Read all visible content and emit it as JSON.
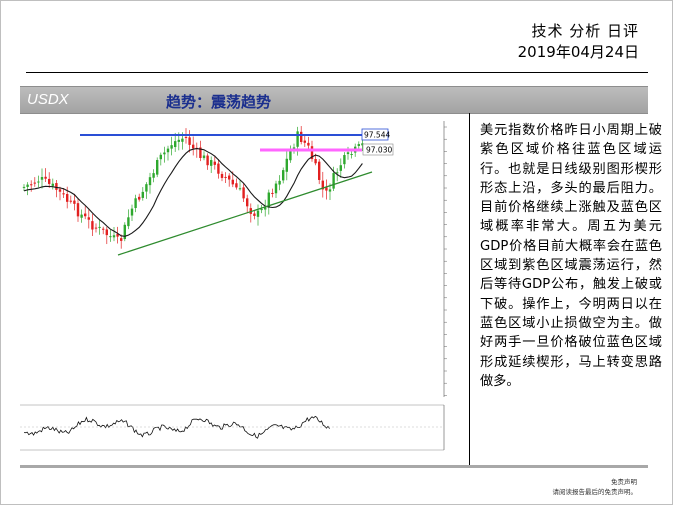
{
  "header": {
    "title": "技术 分析 日评",
    "date": "2019年04月24日"
  },
  "banner": {
    "symbol": "USDX",
    "trend": "趋势：震荡趋势"
  },
  "chart": {
    "level_blue": "97.544",
    "level_pink": "97.030",
    "colors": {
      "blue_line": "#2a4fd6",
      "pink_band": "#ff66ff",
      "trendline": "#2e8b2e",
      "candle_up": "#2ea82e",
      "candle_down": "#e22020",
      "moving_average": "#1a1a1a"
    }
  },
  "commentary": "美元指数价格昨日小周期上破紫色区域价格往蓝色区域运行。也就是日线级别图形楔形形态上沿，多头的最后阻力。目前价格继续上涨触及蓝色区域概率非常大。周五为美元GDP价格目前大概率会在蓝色区域到紫色区域震荡运行，然后等待GDP公布，触发上破或下破。操作上，今明两日以在蓝色区域小止损做空为主。做好两手一旦价格破位蓝色区域形成延续楔形，马上转变思路做多。",
  "disclaimer": {
    "line1": "免责声明",
    "line2": "请阅读报告最后的免责声明。"
  }
}
